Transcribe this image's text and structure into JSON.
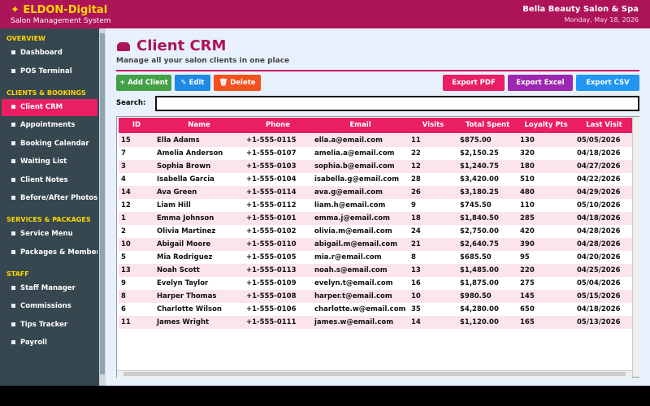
{
  "header": {
    "brand": "✦ ELDON-Digital",
    "subtitle": "Salon Management System",
    "salon": "Bella Beauty Salon & Spa",
    "date": "Monday, May 18, 2026"
  },
  "sidebar": {
    "sections": [
      {
        "title": "OVERVIEW",
        "items": [
          "Dashboard",
          "POS Terminal"
        ]
      },
      {
        "title": "CLIENTS & BOOKINGS",
        "items": [
          "Client CRM",
          "Appointments",
          "Booking Calendar",
          "Waiting List",
          "Client Notes",
          "Before/After Photos"
        ]
      },
      {
        "title": "SERVICES & PACKAGES",
        "items": [
          "Service Menu",
          "Packages & Memberships"
        ]
      },
      {
        "title": "STAFF",
        "items": [
          "Staff Manager",
          "Commissions",
          "Tips Tracker",
          "Payroll"
        ]
      }
    ]
  },
  "page": {
    "title": "Client CRM",
    "subtitle": "Manage all your salon clients in one place"
  },
  "toolbar": {
    "left": [
      {
        "label": "+ Add Client",
        "color": "#43a047"
      },
      {
        "label": "✎ Edit",
        "color": "#1e88e5"
      },
      {
        "label": "🗑 Delete",
        "color": "#f4511e"
      }
    ],
    "right": [
      {
        "label": "Export PDF",
        "color": "#e91e63"
      },
      {
        "label": "Export Excel",
        "color": "#9c27b0"
      },
      {
        "label": "Export CSV",
        "color": "#2196f3"
      }
    ]
  },
  "search": {
    "label": "Search:"
  },
  "table": {
    "columns": [
      "ID",
      "Name",
      "Phone",
      "Email",
      "Visits",
      "Total Spent",
      "Loyalty Pts",
      "Last Visit"
    ],
    "rows": [
      [
        "15",
        "Ella Adams",
        "+1-555-0115",
        "ella.a@email.com",
        "11",
        "$875.00",
        "130",
        "05/05/2026"
      ],
      [
        "7",
        "Amelia Anderson",
        "+1-555-0107",
        "amelia.a@email.com",
        "22",
        "$2,150.25",
        "320",
        "04/18/2026"
      ],
      [
        "3",
        "Sophia Brown",
        "+1-555-0103",
        "sophia.b@email.com",
        "12",
        "$1,240.75",
        "180",
        "04/27/2026"
      ],
      [
        "4",
        "Isabella Garcia",
        "+1-555-0104",
        "isabella.g@email.com",
        "28",
        "$3,420.00",
        "510",
        "04/22/2026"
      ],
      [
        "14",
        "Ava Green",
        "+1-555-0114",
        "ava.g@email.com",
        "26",
        "$3,180.25",
        "480",
        "04/29/2026"
      ],
      [
        "12",
        "Liam Hill",
        "+1-555-0112",
        "liam.h@email.com",
        "9",
        "$745.50",
        "110",
        "05/10/2026"
      ],
      [
        "1",
        "Emma Johnson",
        "+1-555-0101",
        "emma.j@email.com",
        "18",
        "$1,840.50",
        "285",
        "04/18/2026"
      ],
      [
        "2",
        "Olivia Martinez",
        "+1-555-0102",
        "olivia.m@email.com",
        "24",
        "$2,750.00",
        "420",
        "04/28/2026"
      ],
      [
        "10",
        "Abigail Moore",
        "+1-555-0110",
        "abigail.m@email.com",
        "21",
        "$2,640.75",
        "390",
        "04/28/2026"
      ],
      [
        "5",
        "Mia Rodriguez",
        "+1-555-0105",
        "mia.r@email.com",
        "8",
        "$685.50",
        "95",
        "04/20/2026"
      ],
      [
        "13",
        "Noah Scott",
        "+1-555-0113",
        "noah.s@email.com",
        "13",
        "$1,485.00",
        "220",
        "04/25/2026"
      ],
      [
        "9",
        "Evelyn Taylor",
        "+1-555-0109",
        "evelyn.t@email.com",
        "16",
        "$1,875.00",
        "275",
        "05/04/2026"
      ],
      [
        "8",
        "Harper Thomas",
        "+1-555-0108",
        "harper.t@email.com",
        "10",
        "$980.50",
        "145",
        "05/15/2026"
      ],
      [
        "6",
        "Charlotte Wilson",
        "+1-555-0106",
        "charlotte.w@email.com",
        "35",
        "$4,280.00",
        "650",
        "04/18/2026"
      ],
      [
        "11",
        "James Wright",
        "+1-555-0111",
        "james.w@email.com",
        "14",
        "$1,120.00",
        "165",
        "05/13/2026"
      ]
    ]
  }
}
